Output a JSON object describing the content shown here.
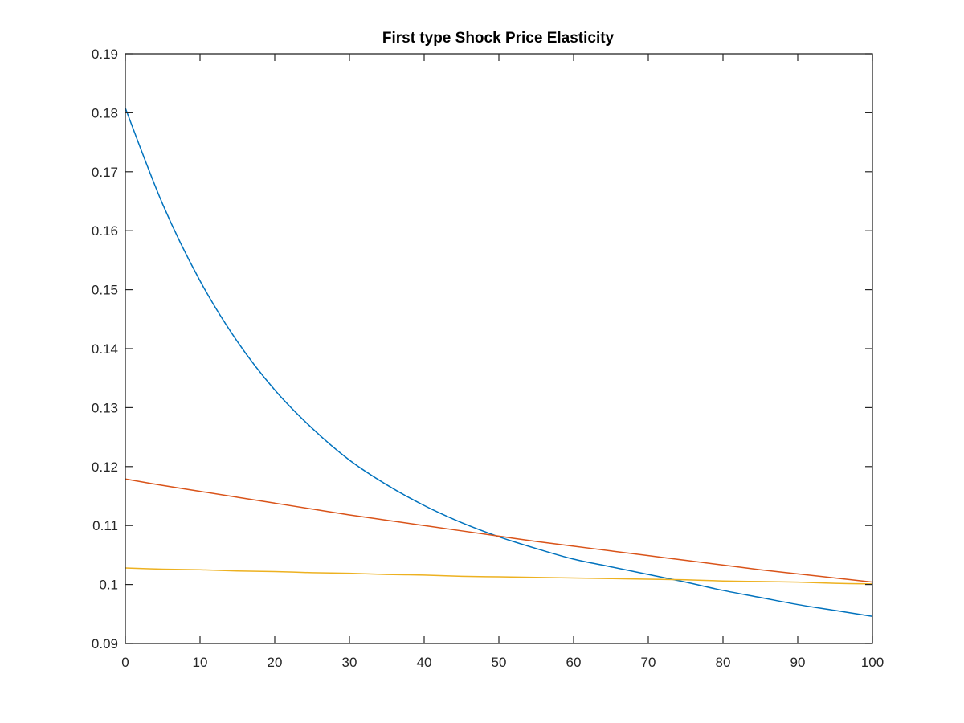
{
  "chart_data": {
    "type": "line",
    "title": "First type Shock Price Elasticity",
    "xlabel": "",
    "ylabel": "",
    "xlim": [
      0,
      100
    ],
    "ylim": [
      0.09,
      0.19
    ],
    "xticks": [
      0,
      10,
      20,
      30,
      40,
      50,
      60,
      70,
      80,
      90,
      100
    ],
    "yticks": [
      0.09,
      0.1,
      0.11,
      0.12,
      0.13,
      0.14,
      0.15,
      0.16,
      0.17,
      0.18,
      0.19
    ],
    "xtick_labels": [
      "0",
      "10",
      "20",
      "30",
      "40",
      "50",
      "60",
      "70",
      "80",
      "90",
      "100"
    ],
    "ytick_labels": [
      "0.09",
      "0.1",
      "0.11",
      "0.12",
      "0.13",
      "0.14",
      "0.15",
      "0.16",
      "0.17",
      "0.18",
      "0.19"
    ],
    "grid": false,
    "legend": "none",
    "x": [
      0,
      5,
      10,
      15,
      20,
      25,
      30,
      35,
      40,
      45,
      50,
      55,
      60,
      65,
      70,
      75,
      80,
      85,
      90,
      95,
      100
    ],
    "series": [
      {
        "color": "#0072BD",
        "values": [
          0.1808,
          0.1645,
          0.1515,
          0.1412,
          0.133,
          0.1265,
          0.1211,
          0.1169,
          0.1134,
          0.1105,
          0.1081,
          0.1061,
          0.1043,
          0.103,
          0.1017,
          0.1004,
          0.099,
          0.0978,
          0.0966,
          0.0956,
          0.0946
        ]
      },
      {
        "color": "#D95319",
        "values": [
          0.1179,
          0.1168,
          0.1158,
          0.1148,
          0.1138,
          0.1128,
          0.1118,
          0.1109,
          0.11,
          0.1091,
          0.1082,
          0.1073,
          0.1065,
          0.1057,
          0.1049,
          0.1041,
          0.1033,
          0.1025,
          0.1018,
          0.1011,
          0.1004
        ]
      },
      {
        "color": "#EDB120",
        "values": [
          0.1028,
          0.1026,
          0.1025,
          0.1023,
          0.1022,
          0.102,
          0.1019,
          0.1017,
          0.1016,
          0.1014,
          0.1013,
          0.1012,
          0.1011,
          0.101,
          0.1009,
          0.1008,
          0.1006,
          0.1005,
          0.1004,
          0.1002,
          0.1001
        ]
      }
    ]
  }
}
